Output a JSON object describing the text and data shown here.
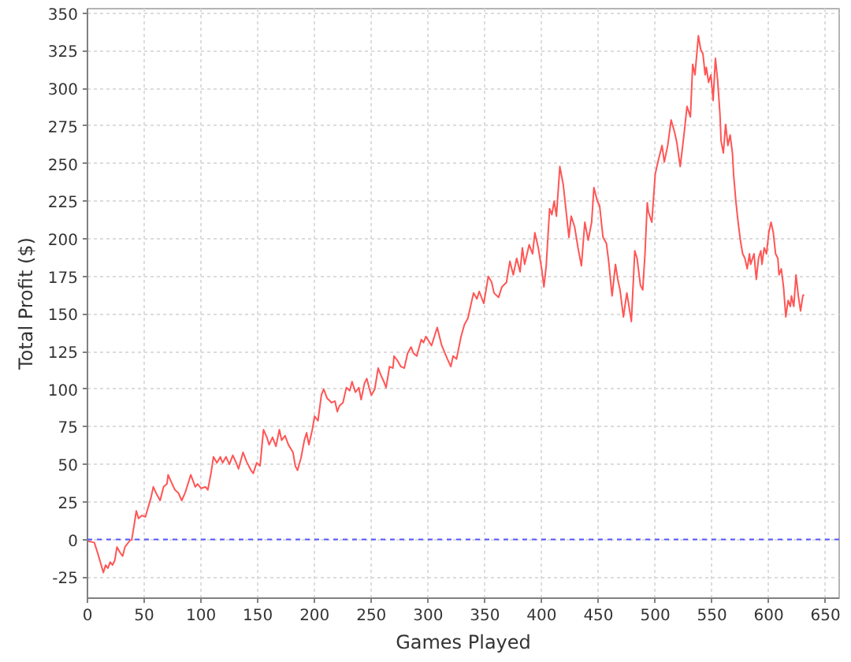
{
  "chart_data": {
    "type": "line",
    "xlabel": "Games Played",
    "ylabel": "Total Profit ($)",
    "xlim": [
      0,
      662
    ],
    "ylim": [
      -39,
      353
    ],
    "xticks": [
      0,
      50,
      100,
      150,
      200,
      250,
      300,
      350,
      400,
      450,
      500,
      550,
      600,
      650
    ],
    "yticks": [
      -25,
      0,
      25,
      50,
      75,
      100,
      125,
      150,
      175,
      200,
      225,
      250,
      275,
      300,
      325,
      350
    ],
    "grid": true,
    "ref_lines": [
      {
        "axis": "y",
        "value": 0,
        "color": "#5555ff",
        "line_style": "dashed"
      }
    ],
    "series": [
      {
        "color": "#ff5555",
        "x": [
          0,
          6,
          9,
          14,
          16,
          18,
          20,
          22,
          24,
          26,
          29,
          31,
          33,
          37,
          39,
          41,
          43,
          45,
          48,
          51,
          56,
          58,
          61,
          64,
          67,
          70,
          71,
          74,
          77,
          80,
          83,
          86,
          91,
          95,
          97,
          100,
          104,
          106,
          109,
          111,
          114,
          117,
          119,
          122,
          125,
          128,
          131,
          133,
          137,
          140,
          144,
          146,
          149,
          152,
          155,
          158,
          160,
          163,
          166,
          169,
          171,
          174,
          177,
          181,
          183,
          185,
          188,
          191,
          193,
          195,
          198,
          200,
          203,
          206,
          208,
          211,
          215,
          218,
          220,
          222,
          225,
          228,
          231,
          233,
          236,
          239,
          241,
          244,
          246,
          248,
          250,
          253,
          256,
          258,
          261,
          263,
          266,
          269,
          270,
          273,
          276,
          279,
          282,
          285,
          287,
          290,
          294,
          296,
          298,
          303,
          308,
          312,
          317,
          320,
          322,
          325,
          329,
          332,
          335,
          340,
          343,
          345,
          349,
          353,
          356,
          358,
          362,
          365,
          369,
          372,
          375,
          378,
          381,
          383,
          385,
          389,
          392,
          394,
          397,
          400,
          402,
          404,
          407,
          409,
          411,
          413,
          416,
          419,
          422,
          424,
          426,
          429,
          432,
          435,
          438,
          441,
          444,
          446,
          449,
          451,
          454,
          457,
          459,
          462,
          465,
          467,
          469,
          472,
          475,
          479,
          482,
          484,
          487,
          489,
          491,
          493,
          494,
          497,
          500,
          503,
          506,
          508,
          511,
          514,
          517,
          519,
          522,
          525,
          528,
          531,
          533,
          535,
          538,
          540,
          542,
          544,
          545,
          547,
          549,
          551,
          553,
          555,
          557,
          558,
          560,
          562,
          564,
          566,
          568,
          569,
          571,
          573,
          575,
          577,
          579,
          581,
          583,
          584,
          587,
          589,
          591,
          593,
          594,
          596,
          598,
          600,
          602,
          604,
          606,
          608,
          609,
          611,
          613,
          615,
          617,
          619,
          620,
          622,
          624,
          626,
          628,
          630,
          631
        ],
        "values": [
          -1,
          -2,
          -9,
          -22,
          -17,
          -19,
          -15,
          -17,
          -14,
          -5,
          -9,
          -11,
          -5,
          -1,
          0,
          9,
          19,
          14,
          16,
          15,
          28,
          35,
          30,
          26,
          35,
          37,
          43,
          38,
          33,
          31,
          26,
          31,
          43,
          35,
          37,
          34,
          35,
          33,
          45,
          55,
          51,
          55,
          51,
          55,
          50,
          56,
          51,
          47,
          58,
          52,
          46,
          44,
          51,
          49,
          73,
          68,
          63,
          68,
          62,
          73,
          66,
          69,
          63,
          58,
          49,
          46,
          54,
          66,
          71,
          63,
          73,
          82,
          79,
          96,
          100,
          94,
          91,
          92,
          85,
          89,
          91,
          101,
          99,
          105,
          98,
          101,
          93,
          104,
          107,
          101,
          96,
          100,
          114,
          110,
          105,
          101,
          115,
          114,
          122,
          119,
          115,
          114,
          124,
          128,
          124,
          122,
          133,
          131,
          135,
          129,
          141,
          129,
          120,
          115,
          122,
          120,
          135,
          143,
          147,
          164,
          160,
          165,
          157,
          175,
          171,
          164,
          161,
          168,
          171,
          185,
          176,
          187,
          178,
          194,
          183,
          196,
          190,
          204,
          194,
          180,
          168,
          182,
          220,
          216,
          225,
          215,
          248,
          236,
          215,
          201,
          215,
          208,
          194,
          182,
          211,
          199,
          211,
          234,
          225,
          222,
          201,
          197,
          185,
          162,
          183,
          173,
          166,
          148,
          164,
          145,
          192,
          187,
          169,
          166,
          190,
          224,
          218,
          211,
          243,
          253,
          262,
          251,
          262,
          279,
          271,
          264,
          248,
          267,
          288,
          281,
          316,
          309,
          335,
          326,
          323,
          309,
          314,
          304,
          309,
          292,
          320,
          305,
          283,
          265,
          257,
          276,
          262,
          269,
          257,
          243,
          225,
          211,
          199,
          190,
          187,
          180,
          190,
          183,
          190,
          173,
          187,
          192,
          183,
          194,
          190,
          204,
          211,
          204,
          190,
          187,
          176,
          180,
          168,
          148,
          159,
          155,
          162,
          155,
          176,
          162,
          152,
          162,
          163
        ]
      }
    ]
  }
}
